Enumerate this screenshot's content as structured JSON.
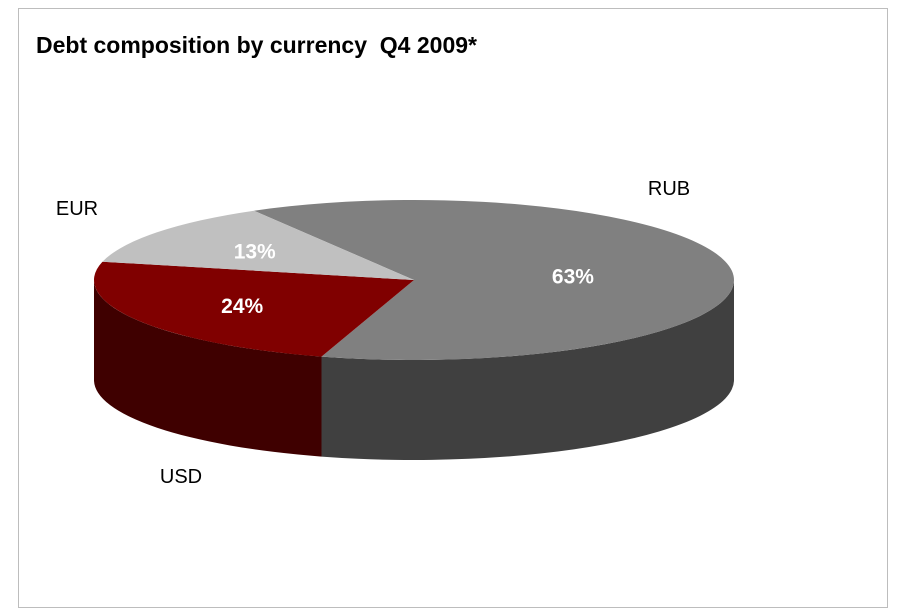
{
  "chart_data": {
    "type": "pie",
    "title": "Debt composition by currency  Q4 2009*",
    "slices": [
      {
        "label": "RUB",
        "value": 63,
        "value_label": "63%",
        "color": "#808080",
        "side_color": "#404040"
      },
      {
        "label": "USD",
        "value": 24,
        "value_label": "24%",
        "color": "#800000",
        "side_color": "#3f0000"
      },
      {
        "label": "EUR",
        "value": 13,
        "value_label": "13%",
        "color": "#c0c0c0",
        "side_color": "#808080"
      }
    ],
    "style": "3d"
  }
}
